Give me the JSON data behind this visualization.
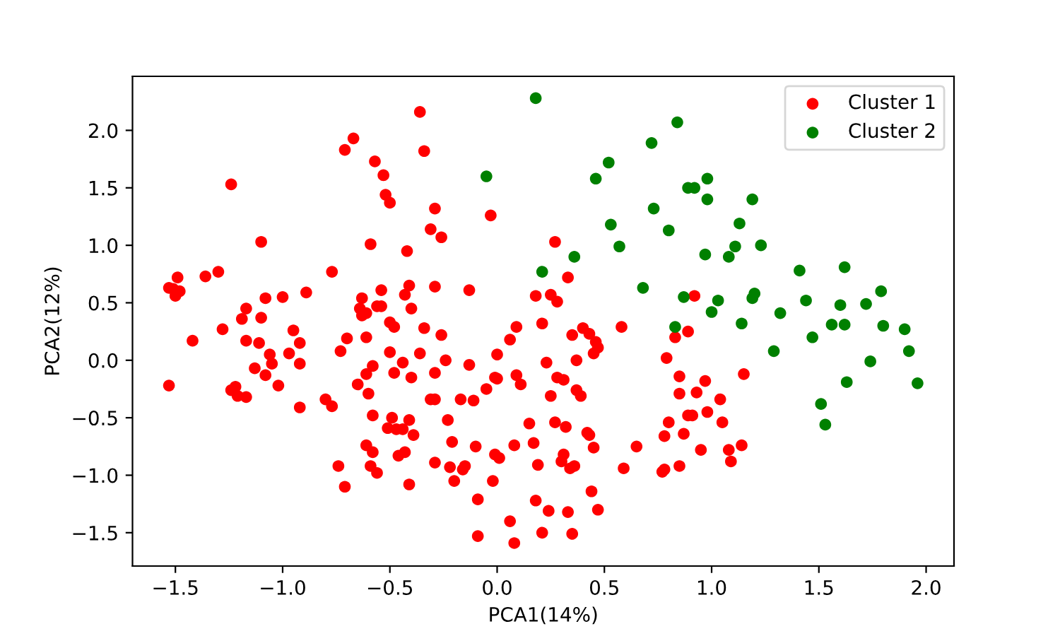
{
  "chart_data": {
    "type": "scatter",
    "xlabel": "PCA1(14%)",
    "ylabel": "PCA2(12%)",
    "xlim": [
      -1.7,
      2.13
    ],
    "ylim": [
      -1.79,
      2.47
    ],
    "xticks": [
      {
        "value": -1.5,
        "label": "−1.5"
      },
      {
        "value": -1.0,
        "label": "−1.0"
      },
      {
        "value": -0.5,
        "label": "−0.5"
      },
      {
        "value": 0,
        "label": "0.0"
      },
      0.5,
      {
        "value": 1,
        "label": "1.0"
      },
      1.5,
      {
        "value": 2,
        "label": "2.0"
      }
    ],
    "yticks": [
      {
        "value": -1.5,
        "label": "−1.5"
      },
      {
        "value": -1.0,
        "label": "−1.0"
      },
      {
        "value": -0.5,
        "label": "−0.5"
      },
      {
        "value": 0,
        "label": "0.0"
      },
      0.5,
      {
        "value": 1,
        "label": "1.0"
      },
      1.5,
      {
        "value": 2,
        "label": "2.0"
      }
    ],
    "grid": false,
    "legend": "top right",
    "marker": "circle",
    "series": [
      {
        "name": "Cluster 1",
        "color": "#ff0000",
        "x": [
          -1.53,
          -1.49,
          -1.48,
          -1.5,
          -1.51,
          -1.36,
          -1.3,
          -1.24,
          -1.1,
          -1.17,
          -1.19,
          -1.1,
          -1.08,
          -1.0,
          -0.89,
          -0.77,
          -0.71,
          -0.67,
          -0.57,
          -0.53,
          -0.52,
          -0.5,
          -0.59,
          -0.42,
          -0.41,
          -0.43,
          -0.4,
          -0.54,
          -0.63,
          -0.64,
          -0.56,
          -0.54,
          -0.63,
          -0.61,
          -0.5,
          -0.36,
          -0.34,
          -0.29,
          -0.03,
          -0.31,
          -0.26,
          0.27,
          -0.29,
          -0.13,
          0.18,
          0.25,
          0.28,
          0.33,
          0.92,
          0.89,
          1.15,
          0.97,
          0.93,
          1.04,
          0.98,
          0.89,
          0.91,
          1.05,
          0.95,
          1.08,
          1.14,
          1.09,
          -0.34,
          -0.26,
          0.09,
          0.21,
          0.06,
          0.4,
          0.43,
          0.46,
          0.47,
          0.45,
          0.35,
          0.58,
          0.83,
          -0.36,
          -0.24,
          -0.13,
          0.0,
          0.23,
          0.37,
          0.79,
          -0.4,
          -0.29,
          -0.01,
          0.0,
          0.09,
          0.11,
          0.28,
          0.31,
          0.85,
          -0.31,
          -0.29,
          -0.17,
          -0.11,
          -0.05,
          0.25,
          0.37,
          0.39,
          0.85,
          -0.41,
          -0.39,
          -0.23,
          -0.21,
          -0.1,
          0.15,
          0.17,
          0.08,
          0.27,
          0.32,
          0.42,
          0.43,
          0.45,
          0.65,
          0.8,
          0.78,
          0.87,
          -0.29,
          -0.22,
          -0.2,
          -0.16,
          -0.15,
          -0.02,
          -0.01,
          0.01,
          0.19,
          0.3,
          0.31,
          0.34,
          0.36,
          0.59,
          0.77,
          0.78,
          0.85,
          -0.41,
          -0.09,
          0.18,
          0.24,
          0.33,
          0.44,
          0.47,
          0.06,
          -0.09,
          0.08,
          0.21,
          0.35,
          -1.42,
          -1.28,
          -1.17,
          -1.11,
          -1.06,
          -1.05,
          -1.13,
          -1.08,
          -1.02,
          -0.97,
          -0.95,
          -0.92,
          -0.92,
          -0.92,
          -1.53,
          -1.24,
          -1.22,
          -1.21,
          -1.17,
          -0.8,
          -0.77,
          -0.73,
          -0.7,
          -0.61,
          -0.48,
          -0.5,
          -0.44,
          -0.58,
          -0.61,
          -0.48,
          -0.65,
          -0.6,
          -0.58,
          -0.49,
          -0.51,
          -0.47,
          -0.44,
          -0.61,
          -0.58,
          -0.46,
          -0.43,
          -0.59,
          -0.56,
          -0.74,
          -0.71
        ],
        "values": [
          0.63,
          0.72,
          0.6,
          0.56,
          0.62,
          0.73,
          0.77,
          1.53,
          1.03,
          0.45,
          0.36,
          0.37,
          0.54,
          0.55,
          0.59,
          0.77,
          1.83,
          1.93,
          1.73,
          1.61,
          1.44,
          1.37,
          1.01,
          0.95,
          0.65,
          0.57,
          0.45,
          0.61,
          0.54,
          0.45,
          0.47,
          0.47,
          0.39,
          0.41,
          0.33,
          2.16,
          1.82,
          1.32,
          1.26,
          1.14,
          1.07,
          1.03,
          0.64,
          0.61,
          0.56,
          0.57,
          0.51,
          0.72,
          0.56,
          0.25,
          -0.12,
          -0.18,
          -0.28,
          -0.34,
          -0.45,
          -0.48,
          -0.48,
          -0.54,
          -0.78,
          -0.78,
          -0.74,
          -0.88,
          0.28,
          0.22,
          0.29,
          0.32,
          0.18,
          0.28,
          0.23,
          0.16,
          0.11,
          0.06,
          0.22,
          0.29,
          0.2,
          0.06,
          0.0,
          -0.04,
          0.05,
          -0.02,
          0.0,
          0.02,
          -0.15,
          -0.11,
          -0.15,
          -0.16,
          -0.13,
          -0.21,
          -0.15,
          -0.17,
          -0.14,
          -0.34,
          -0.34,
          -0.34,
          -0.35,
          -0.25,
          -0.31,
          -0.26,
          -0.31,
          -0.29,
          -0.52,
          -0.65,
          -0.52,
          -0.71,
          -0.75,
          -0.55,
          -0.72,
          -0.74,
          -0.54,
          -0.58,
          -0.63,
          -0.65,
          -0.76,
          -0.75,
          -0.54,
          -0.66,
          -0.64,
          -0.89,
          -0.93,
          -1.05,
          -0.95,
          -0.92,
          -1.05,
          -0.82,
          -0.85,
          -0.91,
          -0.88,
          -0.82,
          -0.94,
          -0.92,
          -0.94,
          -0.97,
          -0.95,
          -0.92,
          -1.08,
          -1.21,
          -1.22,
          -1.31,
          -1.32,
          -1.14,
          -1.3,
          -1.4,
          -1.53,
          -1.59,
          -1.5,
          -1.51,
          0.17,
          0.27,
          0.17,
          0.15,
          0.05,
          -0.03,
          -0.07,
          -0.13,
          -0.22,
          0.06,
          0.26,
          0.15,
          -0.03,
          -0.41,
          -0.22,
          -0.26,
          -0.23,
          -0.31,
          -0.32,
          -0.34,
          -0.4,
          0.08,
          0.19,
          0.2,
          0.29,
          0.07,
          -0.02,
          -0.05,
          -0.12,
          -0.11,
          -0.21,
          -0.29,
          -0.48,
          -0.5,
          -0.59,
          -0.6,
          -0.6,
          -0.74,
          -0.8,
          -0.83,
          -0.8,
          -0.92,
          -0.98,
          -0.92,
          -1.1
        ]
      },
      {
        "name": "Cluster 2",
        "color": "#008000",
        "x": [
          -0.05,
          0.18,
          0.84,
          0.72,
          0.52,
          0.46,
          0.89,
          0.92,
          0.73,
          0.53,
          0.8,
          0.57,
          0.36,
          0.21,
          0.68,
          0.87,
          0.83,
          0.98,
          0.98,
          1.19,
          1.13,
          1.11,
          1.23,
          0.97,
          1.08,
          1.41,
          1.62,
          1.79,
          1.03,
          1.19,
          1.2,
          1.44,
          1.6,
          1.72,
          1.0,
          1.32,
          1.14,
          1.56,
          1.62,
          1.8,
          1.9,
          1.47,
          1.29,
          1.92,
          1.74,
          1.63,
          1.96,
          1.51,
          1.53
        ],
        "values": [
          1.6,
          2.28,
          2.07,
          1.89,
          1.72,
          1.58,
          1.5,
          1.5,
          1.32,
          1.18,
          1.13,
          0.99,
          0.9,
          0.77,
          0.63,
          0.55,
          0.29,
          1.58,
          1.4,
          1.4,
          1.19,
          0.99,
          1.0,
          0.92,
          0.9,
          0.78,
          0.81,
          0.6,
          0.52,
          0.54,
          0.58,
          0.52,
          0.48,
          0.49,
          0.42,
          0.41,
          0.32,
          0.31,
          0.31,
          0.3,
          0.27,
          0.2,
          0.08,
          0.08,
          -0.01,
          -0.19,
          -0.2,
          -0.38,
          -0.56
        ]
      }
    ]
  }
}
